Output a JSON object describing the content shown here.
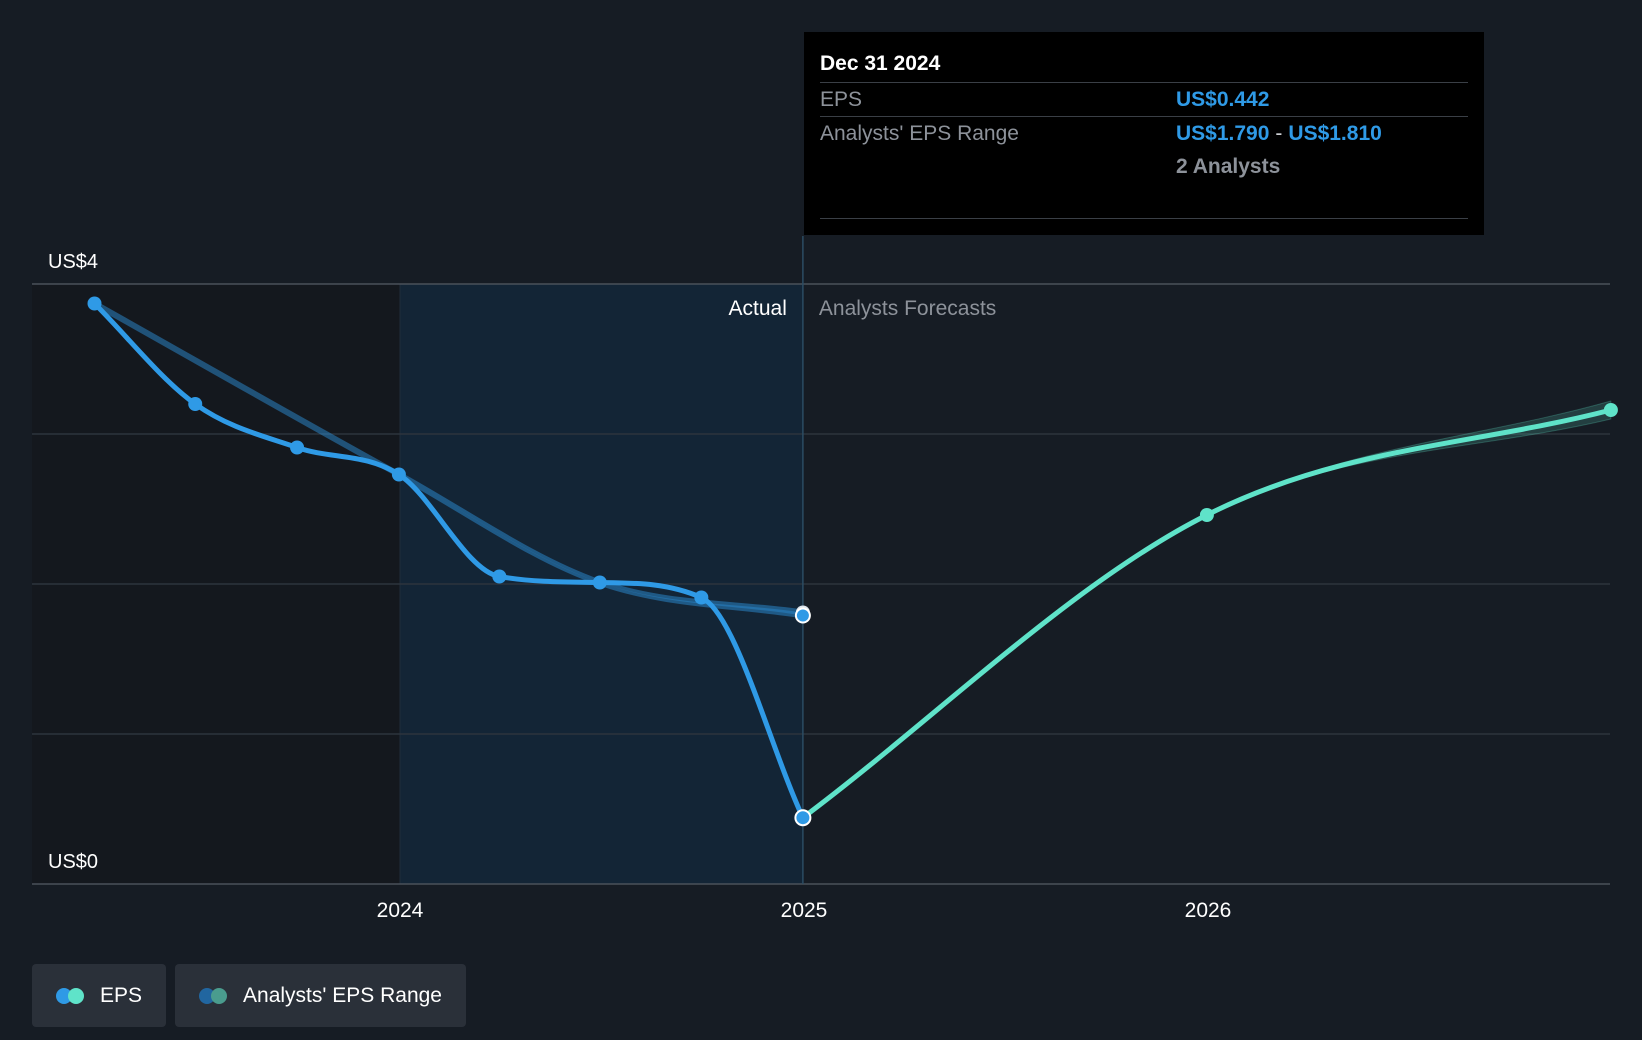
{
  "chart_data": {
    "type": "line",
    "y_axis": {
      "top_label": "US$4",
      "bottom_label": "US$0",
      "ylim": [
        0,
        4
      ],
      "gridlines": [
        0,
        1,
        2,
        3,
        4
      ]
    },
    "x_axis": {
      "tick_labels": [
        "2024",
        "2025",
        "2026"
      ]
    },
    "section_labels": {
      "actual": "Actual",
      "forecast": "Analysts Forecasts"
    },
    "series": [
      {
        "name": "EPS",
        "kind": "actual",
        "color": "#2f9ae6",
        "points": [
          [
            "2023-03-31",
            3.87
          ],
          [
            "2023-06-30",
            3.2
          ],
          [
            "2023-09-30",
            2.91
          ],
          [
            "2023-12-31",
            2.73
          ],
          [
            "2024-03-31",
            2.05
          ],
          [
            "2024-06-30",
            2.01
          ],
          [
            "2024-09-30",
            1.91
          ],
          [
            "2024-12-31",
            0.442
          ]
        ]
      },
      {
        "name": "EPS",
        "kind": "forecast",
        "color": "#5fe3c9",
        "points": [
          [
            "2024-12-31",
            0.442
          ],
          [
            "2025-12-31",
            2.46
          ],
          [
            "2026-12-31",
            3.16
          ]
        ]
      },
      {
        "name": "Analysts' EPS Range",
        "kind": "range",
        "color": "#2f9ae6",
        "points": [
          [
            "2023-03-31",
            3.87,
            3.87
          ],
          [
            "2023-12-31",
            2.73,
            2.73
          ],
          [
            "2024-06-30",
            2.01,
            2.01
          ],
          [
            "2024-12-31",
            1.79,
            1.81
          ]
        ]
      },
      {
        "name": "Analysts' EPS Range",
        "kind": "forecast-range",
        "color": "#5fe3c9",
        "points": [
          [
            "2024-12-31",
            0.442,
            0.442
          ],
          [
            "2025-12-31",
            2.46,
            2.46
          ],
          [
            "2026-12-31",
            3.1,
            3.22
          ]
        ]
      }
    ],
    "highlight_date": "2024-12-31",
    "tooltip": {
      "date": "Dec 31 2024",
      "eps_label": "EPS",
      "eps_value": "US$0.442",
      "range_label": "Analysts' EPS Range",
      "range_low": "US$1.790",
      "range_sep": "-",
      "range_high": "US$1.810",
      "analysts": "2 Analysts"
    },
    "legend": [
      {
        "label": "EPS",
        "colors": [
          "#2f9ae6",
          "#5fe3c9"
        ]
      },
      {
        "label": "Analysts' EPS Range",
        "colors": [
          "#2166a0",
          "#4a9c8e"
        ]
      }
    ]
  }
}
